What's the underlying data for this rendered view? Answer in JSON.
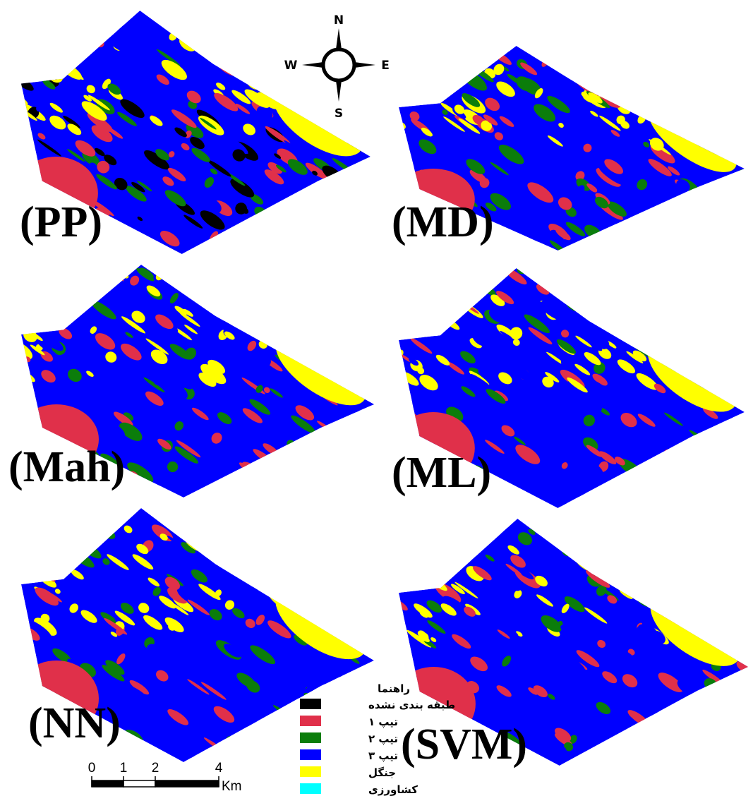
{
  "compass": {
    "north": "N",
    "south": "S",
    "west": "W",
    "east": "E"
  },
  "panels": [
    {
      "label": "(PP)"
    },
    {
      "label": "(MD)"
    },
    {
      "label": "(Mah)"
    },
    {
      "label": "(ML)"
    },
    {
      "label": "(NN)"
    },
    {
      "label": "(SVM)"
    }
  ],
  "legend": {
    "title": "راهنما",
    "items": [
      {
        "label": "طبقه بندی نشده",
        "color": "#000000"
      },
      {
        "label": "تیپ ۱",
        "color": "#e0304a"
      },
      {
        "label": "تیپ ۲",
        "color": "#0b7d0b"
      },
      {
        "label": "تیپ ۳",
        "color": "#0000ff"
      },
      {
        "label": "جنگل",
        "color": "#ffff00"
      },
      {
        "label": "کشاورزی",
        "color": "#00ffff"
      }
    ]
  },
  "scale": {
    "ticks": [
      0,
      1,
      2,
      4
    ],
    "unit": "Km"
  }
}
